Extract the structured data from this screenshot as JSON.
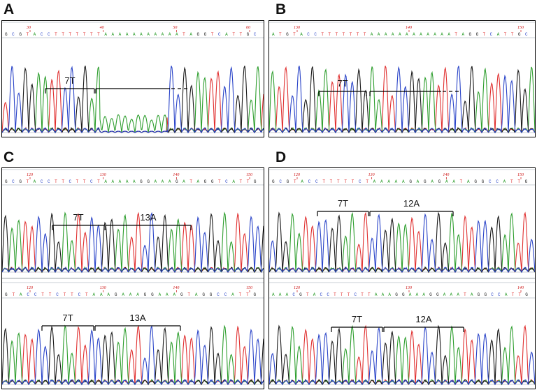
{
  "colors": {
    "A": "#2e9e2e",
    "C": "#2a44c8",
    "G": "#1a1a1a",
    "T": "#e03030",
    "pos": "#cc1111",
    "bracket": "#000000",
    "frame": "#000000"
  },
  "panels": [
    {
      "label": "A",
      "tracks": [
        {
          "seq": "GCGTACCTTTTTTTAAAAAAAAAAATAGGTCATTGC",
          "positions": [
            "30",
            "40",
            "50",
            "60"
          ],
          "annotations": [
            "7T"
          ]
        }
      ]
    },
    {
      "label": "B",
      "tracks": [
        {
          "seq": "ATGTACCTTTTTTTAAAAAAAAAAAATAGGTCATTGC",
          "positions": [
            "130",
            "140",
            "150"
          ],
          "annotations": [
            "7T"
          ]
        }
      ]
    },
    {
      "label": "C",
      "tracks": [
        {
          "seq": "GCGTACCTTCTTCTAAAAAGGAAAGATAGGTCATTG",
          "positions": [
            "120",
            "130",
            "140",
            "150"
          ],
          "annotations": [
            "7T",
            "13A"
          ]
        },
        {
          "seq": "GTACCTTCTTCTAAAGAAAGGAAAGTAGGCCATTG",
          "positions": [
            "120",
            "130",
            "140",
            "150"
          ],
          "annotations": [
            "7T",
            "13A"
          ]
        }
      ]
    },
    {
      "label": "D",
      "tracks": [
        {
          "seq": "GCGTACCTTTTTCTAAAAAGAGAGAATAGGCCATTG",
          "positions": [
            "120",
            "130",
            "140",
            "150"
          ],
          "annotations": [
            "7T",
            "12A"
          ]
        },
        {
          "seq": "AAACGTACCTTTCTTAAAGGAAAGGAAATAGGCCATTG",
          "positions": [
            "120",
            "130",
            "140"
          ],
          "annotations": [
            "7T",
            "12A"
          ]
        }
      ]
    }
  ],
  "chart_data": [
    {
      "type": "line",
      "panel": "A",
      "series": [
        {
          "name": "T"
        },
        {
          "name": "A"
        },
        {
          "name": "C"
        },
        {
          "name": "G"
        }
      ],
      "annotations": [
        {
          "label": "7T",
          "span": "T homopolymer"
        },
        {
          "label": "",
          "span": "A homopolymer, open-ended"
        }
      ]
    },
    {
      "type": "line",
      "panel": "B",
      "series": [
        {
          "name": "T"
        },
        {
          "name": "A"
        },
        {
          "name": "C"
        },
        {
          "name": "G"
        }
      ],
      "annotations": [
        {
          "label": "7T",
          "span": "T homopolymer"
        },
        {
          "label": "",
          "span": "A homopolymer, open-ended"
        }
      ]
    },
    {
      "type": "line",
      "panel": "C",
      "series": [
        {
          "name": "T"
        },
        {
          "name": "A"
        },
        {
          "name": "C"
        },
        {
          "name": "G"
        }
      ],
      "annotations": [
        {
          "label": "7T"
        },
        {
          "label": "13A"
        }
      ]
    },
    {
      "type": "line",
      "panel": "D",
      "series": [
        {
          "name": "T"
        },
        {
          "name": "A"
        },
        {
          "name": "C"
        },
        {
          "name": "G"
        }
      ],
      "annotations": [
        {
          "label": "7T"
        },
        {
          "label": "12A"
        }
      ]
    }
  ]
}
